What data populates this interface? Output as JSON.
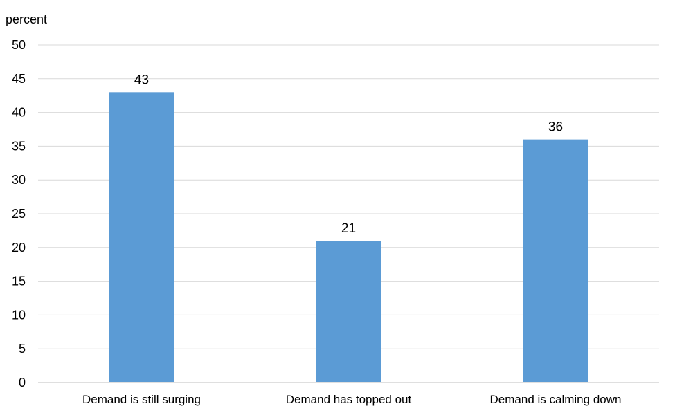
{
  "chart_data": {
    "type": "bar",
    "unit_label": "percent",
    "categories": [
      "Demand is still surging",
      "Demand has topped out",
      "Demand is calming down"
    ],
    "values": [
      43,
      21,
      36
    ],
    "data_labels": [
      "43",
      "21",
      "36"
    ],
    "ylim": [
      0,
      50
    ],
    "yticks": [
      0,
      5,
      10,
      15,
      20,
      25,
      30,
      35,
      40,
      45,
      50
    ],
    "grid": true,
    "legend": "none",
    "bar_color": "#5B9BD5",
    "grid_color": "#D9D9D9",
    "axis_color": "#BFBFBF"
  }
}
